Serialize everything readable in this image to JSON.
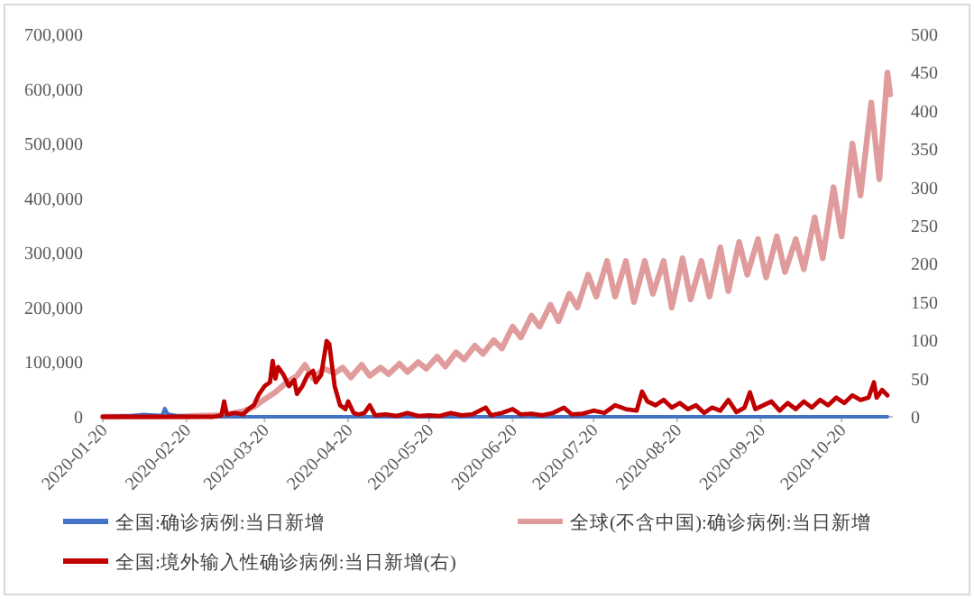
{
  "chart_data": {
    "type": "line",
    "legend": "bottom",
    "xlim": [
      "2020-01-20",
      "2020-11-08"
    ],
    "xticks": [
      "2020-01-20",
      "2020-02-20",
      "2020-03-20",
      "2020-04-20",
      "2020-05-20",
      "2020-06-20",
      "2020-07-20",
      "2020-08-20",
      "2020-09-20",
      "2020-10-20"
    ],
    "ylim": [
      0,
      700000
    ],
    "yticks": [
      {
        "value": 0,
        "label": "0"
      },
      {
        "value": 100000,
        "label": "100,000"
      },
      {
        "value": 200000,
        "label": "200,000"
      },
      {
        "value": 300000,
        "label": "300,000"
      },
      {
        "value": 400000,
        "label": "400,000"
      },
      {
        "value": 500000,
        "label": "500,000"
      },
      {
        "value": 600000,
        "label": "600,000"
      },
      {
        "value": 700000,
        "label": "700,000"
      }
    ],
    "y2lim": [
      0,
      500
    ],
    "y2ticks": [
      0,
      50,
      100,
      150,
      200,
      250,
      300,
      350,
      400,
      450,
      500
    ],
    "series": [
      {
        "name": "全国:确诊病例:当日新增",
        "color": "#4472c4",
        "x": [
          "2020-01-20",
          "2020-01-25",
          "2020-01-31",
          "2020-02-04",
          "2020-02-08",
          "2020-02-11",
          "2020-02-12",
          "2020-02-13",
          "2020-02-16",
          "2020-02-20",
          "2020-02-24",
          "2020-03-01",
          "2020-03-10",
          "2020-04-17",
          "2020-11-06"
        ],
        "values": [
          0,
          1000,
          2000,
          4000,
          3000,
          2000,
          15000,
          5000,
          2000,
          1000,
          0,
          0,
          0,
          0,
          0
        ]
      },
      {
        "name": "全球(不含中国):确诊病例:当日新增",
        "color": "#e09c9c",
        "x": [
          "2020-01-20",
          "2020-02-20",
          "2020-02-26",
          "2020-03-05",
          "2020-03-12",
          "2020-03-16",
          "2020-03-20",
          "2020-03-24",
          "2020-03-28",
          "2020-04-01",
          "2020-04-04",
          "2020-04-07",
          "2020-04-11",
          "2020-04-15",
          "2020-04-18",
          "2020-04-21",
          "2020-04-25",
          "2020-04-28",
          "2020-05-02",
          "2020-05-05",
          "2020-05-09",
          "2020-05-12",
          "2020-05-16",
          "2020-05-19",
          "2020-05-23",
          "2020-05-26",
          "2020-05-30",
          "2020-06-02",
          "2020-06-06",
          "2020-06-09",
          "2020-06-13",
          "2020-06-16",
          "2020-06-20",
          "2020-06-23",
          "2020-06-27",
          "2020-06-30",
          "2020-07-04",
          "2020-07-07",
          "2020-07-11",
          "2020-07-14",
          "2020-07-18",
          "2020-07-21",
          "2020-07-25",
          "2020-07-28",
          "2020-08-01",
          "2020-08-04",
          "2020-08-08",
          "2020-08-11",
          "2020-08-15",
          "2020-08-18",
          "2020-08-22",
          "2020-08-25",
          "2020-08-29",
          "2020-09-01",
          "2020-09-05",
          "2020-09-08",
          "2020-09-12",
          "2020-09-15",
          "2020-09-19",
          "2020-09-22",
          "2020-09-26",
          "2020-09-29",
          "2020-10-03",
          "2020-10-06",
          "2020-10-10",
          "2020-10-13",
          "2020-10-17",
          "2020-10-20",
          "2020-10-24",
          "2020-10-27",
          "2020-10-31",
          "2020-11-03",
          "2020-11-06",
          "2020-11-07"
        ],
        "values": [
          0,
          1000,
          2000,
          3000,
          10000,
          18000,
          32000,
          45000,
          62000,
          75000,
          95000,
          70000,
          88000,
          80000,
          90000,
          72000,
          95000,
          75000,
          90000,
          78000,
          97000,
          82000,
          100000,
          88000,
          110000,
          92000,
          118000,
          105000,
          130000,
          115000,
          140000,
          125000,
          165000,
          145000,
          185000,
          165000,
          205000,
          175000,
          225000,
          200000,
          260000,
          220000,
          285000,
          220000,
          285000,
          210000,
          285000,
          225000,
          285000,
          200000,
          290000,
          215000,
          285000,
          220000,
          310000,
          230000,
          320000,
          260000,
          325000,
          255000,
          330000,
          265000,
          325000,
          270000,
          365000,
          290000,
          420000,
          330000,
          500000,
          405000,
          575000,
          435000,
          630000,
          590000
        ]
      },
      {
        "name": "全国:境外输入性确诊病例:当日新增(右)",
        "color": "#c00000",
        "axis": "y2",
        "x": [
          "2020-01-20",
          "2020-03-01",
          "2020-03-04",
          "2020-03-05",
          "2020-03-06",
          "2020-03-09",
          "2020-03-12",
          "2020-03-14",
          "2020-03-16",
          "2020-03-18",
          "2020-03-20",
          "2020-03-22",
          "2020-03-23",
          "2020-03-24",
          "2020-03-25",
          "2020-03-27",
          "2020-03-29",
          "2020-03-31",
          "2020-04-01",
          "2020-04-03",
          "2020-04-05",
          "2020-04-07",
          "2020-04-08",
          "2020-04-10",
          "2020-04-12",
          "2020-04-13",
          "2020-04-15",
          "2020-04-17",
          "2020-04-19",
          "2020-04-20",
          "2020-04-22",
          "2020-04-24",
          "2020-04-26",
          "2020-04-28",
          "2020-04-30",
          "2020-05-04",
          "2020-05-08",
          "2020-05-12",
          "2020-05-16",
          "2020-05-20",
          "2020-05-24",
          "2020-05-28",
          "2020-06-01",
          "2020-06-05",
          "2020-06-10",
          "2020-06-12",
          "2020-06-16",
          "2020-06-20",
          "2020-06-23",
          "2020-06-27",
          "2020-07-01",
          "2020-07-05",
          "2020-07-09",
          "2020-07-12",
          "2020-07-16",
          "2020-07-20",
          "2020-07-24",
          "2020-07-28",
          "2020-08-01",
          "2020-08-05",
          "2020-08-07",
          "2020-08-09",
          "2020-08-12",
          "2020-08-15",
          "2020-08-18",
          "2020-08-21",
          "2020-08-24",
          "2020-08-27",
          "2020-08-30",
          "2020-09-02",
          "2020-09-05",
          "2020-09-08",
          "2020-09-11",
          "2020-09-14",
          "2020-09-16",
          "2020-09-18",
          "2020-09-21",
          "2020-09-24",
          "2020-09-27",
          "2020-09-30",
          "2020-10-03",
          "2020-10-06",
          "2020-10-09",
          "2020-10-12",
          "2020-10-15",
          "2020-10-18",
          "2020-10-21",
          "2020-10-24",
          "2020-10-27",
          "2020-10-30",
          "2020-11-01",
          "2020-11-02",
          "2020-11-04",
          "2020-11-06"
        ],
        "values": [
          0,
          0,
          2,
          20,
          3,
          5,
          3,
          10,
          15,
          30,
          40,
          45,
          73,
          50,
          65,
          55,
          40,
          48,
          30,
          40,
          55,
          60,
          45,
          55,
          99,
          95,
          40,
          15,
          10,
          20,
          5,
          3,
          5,
          15,
          2,
          3,
          1,
          5,
          1,
          2,
          1,
          5,
          2,
          3,
          12,
          2,
          5,
          10,
          3,
          4,
          2,
          5,
          12,
          3,
          4,
          8,
          5,
          15,
          10,
          8,
          33,
          20,
          15,
          22,
          12,
          18,
          10,
          15,
          5,
          12,
          8,
          22,
          6,
          12,
          32,
          10,
          15,
          20,
          8,
          18,
          10,
          20,
          12,
          22,
          15,
          25,
          18,
          28,
          22,
          25,
          45,
          25,
          35,
          28
        ]
      }
    ]
  }
}
